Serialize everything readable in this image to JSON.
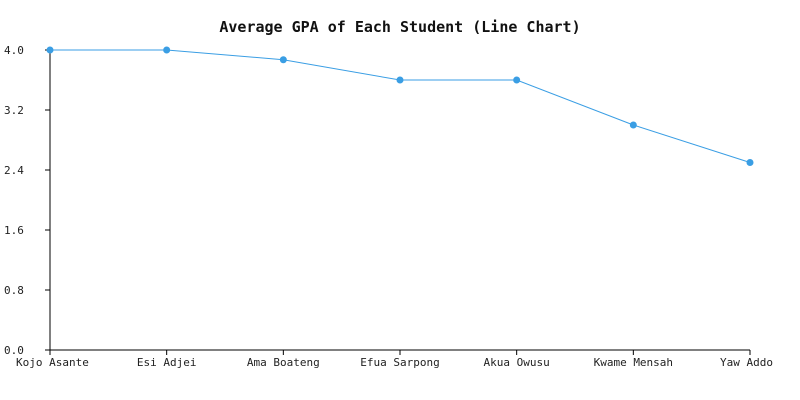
{
  "chart_data": {
    "type": "line",
    "title": "Average GPA of Each Student (Line Chart)",
    "xlabel": "",
    "ylabel": "",
    "categories": [
      "Kojo Asante",
      "Esi Adjei",
      "Ama Boateng",
      "Efua Sarpong",
      "Akua Owusu",
      "Kwame Mensah",
      "Yaw Addo"
    ],
    "series": [
      {
        "values": [
          4.0,
          4.0,
          3.87,
          3.6,
          3.6,
          3.0,
          2.5
        ]
      }
    ],
    "ylim": [
      0,
      4.0
    ],
    "yticks": [
      "0.0",
      "0.8",
      "1.6",
      "2.4",
      "3.2",
      "4.0"
    ],
    "grid": false,
    "legend": "none",
    "colors": {
      "line": "#3a9ee4",
      "marker": "#3a9ee4",
      "axis": "#000000"
    }
  }
}
